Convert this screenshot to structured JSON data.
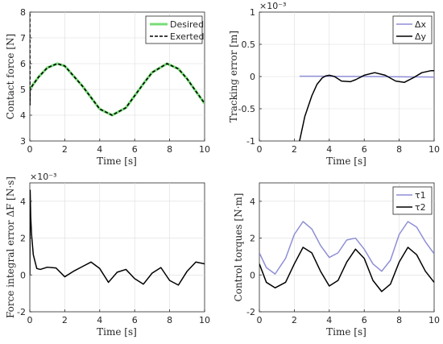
{
  "chart_data": [
    {
      "type": "line",
      "xlabel": "Time [s]",
      "ylabel": "Contact force [N]",
      "xlim": [
        0,
        10
      ],
      "ylim": [
        3,
        8
      ],
      "xticks": [
        "0",
        "2",
        "4",
        "6",
        "8",
        "10"
      ],
      "yticks": [
        "3",
        "4",
        "5",
        "6",
        "7",
        "8"
      ],
      "grid": true,
      "legend_location": "top-right",
      "exponent_label": "",
      "x": [
        0,
        0.01,
        0.02,
        0.03,
        0.05,
        0.1,
        0.2,
        0.5,
        1.0,
        1.57,
        2.0,
        3.0,
        4.0,
        4.71,
        5.5,
        6.5,
        7.0,
        7.85,
        8.5,
        9.0,
        9.5,
        10.0
      ],
      "series": [
        {
          "name": "Desired",
          "color": "#77dd77",
          "style": "solid",
          "values": [
            5.0,
            5.01,
            5.02,
            5.03,
            5.05,
            5.1,
            5.2,
            5.48,
            5.84,
            6.0,
            5.91,
            5.14,
            4.24,
            4.0,
            4.29,
            5.22,
            5.66,
            6.0,
            5.8,
            5.41,
            4.93,
            4.46
          ]
        },
        {
          "name": "Exerted",
          "color": "#000000",
          "style": "dashed",
          "values": [
            7.95,
            4.4,
            5.02,
            5.03,
            5.05,
            5.1,
            5.2,
            5.48,
            5.84,
            6.0,
            5.91,
            5.14,
            4.24,
            4.0,
            4.29,
            5.22,
            5.66,
            6.0,
            5.8,
            5.41,
            4.93,
            4.46
          ]
        }
      ]
    },
    {
      "type": "line",
      "xlabel": "Time [s]",
      "ylabel": "Tracking error [m]",
      "xlim": [
        0,
        10
      ],
      "ylim": [
        -1,
        1
      ],
      "xticks": [
        "0",
        "2",
        "4",
        "6",
        "8",
        "10"
      ],
      "yticks": [
        "-1",
        "-0.5",
        "0",
        "0.5",
        "1"
      ],
      "grid": true,
      "legend_location": "top-right",
      "exponent_label": "×10⁻³",
      "x": [
        2.3,
        2.6,
        3.0,
        3.3,
        3.6,
        3.8,
        4.0,
        4.3,
        4.7,
        5.2,
        5.5,
        6.0,
        6.6,
        7.2,
        7.8,
        8.3,
        8.8,
        9.3,
        9.8,
        10.0
      ],
      "series": [
        {
          "name": "Δx",
          "color": "#8e8ed6",
          "style": "solid",
          "values": [
            0.005,
            0.005,
            0.004,
            0.004,
            0.004,
            0.003,
            0.003,
            0.003,
            0.002,
            0.001,
            0.001,
            0.0,
            0.0,
            -0.002,
            -0.003,
            -0.005,
            -0.006,
            -0.007,
            -0.008,
            -0.01
          ]
        },
        {
          "name": "Δy",
          "color": "#000000",
          "style": "solid",
          "values": [
            -1.0,
            -0.62,
            -0.3,
            -0.12,
            -0.02,
            0.01,
            0.02,
            0.0,
            -0.07,
            -0.08,
            -0.05,
            0.02,
            0.06,
            0.02,
            -0.07,
            -0.09,
            -0.02,
            0.06,
            0.09,
            0.09
          ]
        }
      ]
    },
    {
      "type": "line",
      "xlabel": "Time [s]",
      "ylabel": "Force integral error ΔF [N·s]",
      "xlim": [
        0,
        10
      ],
      "ylim": [
        -2,
        5
      ],
      "xticks": [
        "0",
        "2",
        "4",
        "6",
        "8",
        "10"
      ],
      "yticks": [
        "-2",
        "0",
        "2",
        "4"
      ],
      "grid": true,
      "legend_location": "none",
      "exponent_label": "×10⁻³",
      "x": [
        0,
        0.02,
        0.05,
        0.1,
        0.2,
        0.4,
        0.6,
        1.0,
        1.5,
        2.0,
        2.5,
        3.0,
        3.5,
        4.0,
        4.5,
        5.0,
        5.5,
        6.0,
        6.5,
        7.0,
        7.5,
        8.0,
        8.5,
        9.0,
        9.5,
        10.0
      ],
      "series": [
        {
          "name": "",
          "color": "#000000",
          "style": "solid",
          "values": [
            0.0,
            4.6,
            3.2,
            2.2,
            1.1,
            0.35,
            0.3,
            0.42,
            0.38,
            -0.1,
            0.2,
            0.45,
            0.7,
            0.35,
            -0.4,
            0.15,
            0.3,
            -0.2,
            -0.5,
            0.1,
            0.4,
            -0.3,
            -0.55,
            0.2,
            0.7,
            0.6
          ]
        }
      ]
    },
    {
      "type": "line",
      "xlabel": "Time [s]",
      "ylabel": "Control torques [N·m]",
      "xlim": [
        0,
        10
      ],
      "ylim": [
        -2,
        5
      ],
      "xticks": [
        "0",
        "2",
        "4",
        "6",
        "8",
        "10"
      ],
      "yticks": [
        "-2",
        "0",
        "2",
        "4"
      ],
      "grid": true,
      "legend_location": "top-right",
      "exponent_label": "",
      "x": [
        0,
        0.4,
        0.9,
        1.5,
        2.0,
        2.5,
        3.0,
        3.5,
        4.0,
        4.5,
        5.0,
        5.5,
        6.0,
        6.5,
        7.0,
        7.5,
        8.0,
        8.5,
        9.0,
        9.5,
        10.0
      ],
      "series": [
        {
          "name": "τ1",
          "color": "#8e8ed6",
          "style": "solid",
          "values": [
            1.2,
            0.4,
            0.05,
            0.9,
            2.2,
            2.9,
            2.5,
            1.6,
            0.95,
            1.2,
            1.9,
            2.0,
            1.4,
            0.6,
            0.2,
            0.8,
            2.2,
            2.9,
            2.6,
            1.8,
            1.15
          ]
        },
        {
          "name": "τ2",
          "color": "#000000",
          "style": "solid",
          "values": [
            0.6,
            -0.4,
            -0.7,
            -0.4,
            0.6,
            1.5,
            1.2,
            0.2,
            -0.6,
            -0.3,
            0.7,
            1.4,
            0.9,
            -0.3,
            -0.9,
            -0.5,
            0.7,
            1.5,
            1.1,
            0.2,
            -0.4
          ]
        }
      ]
    }
  ]
}
